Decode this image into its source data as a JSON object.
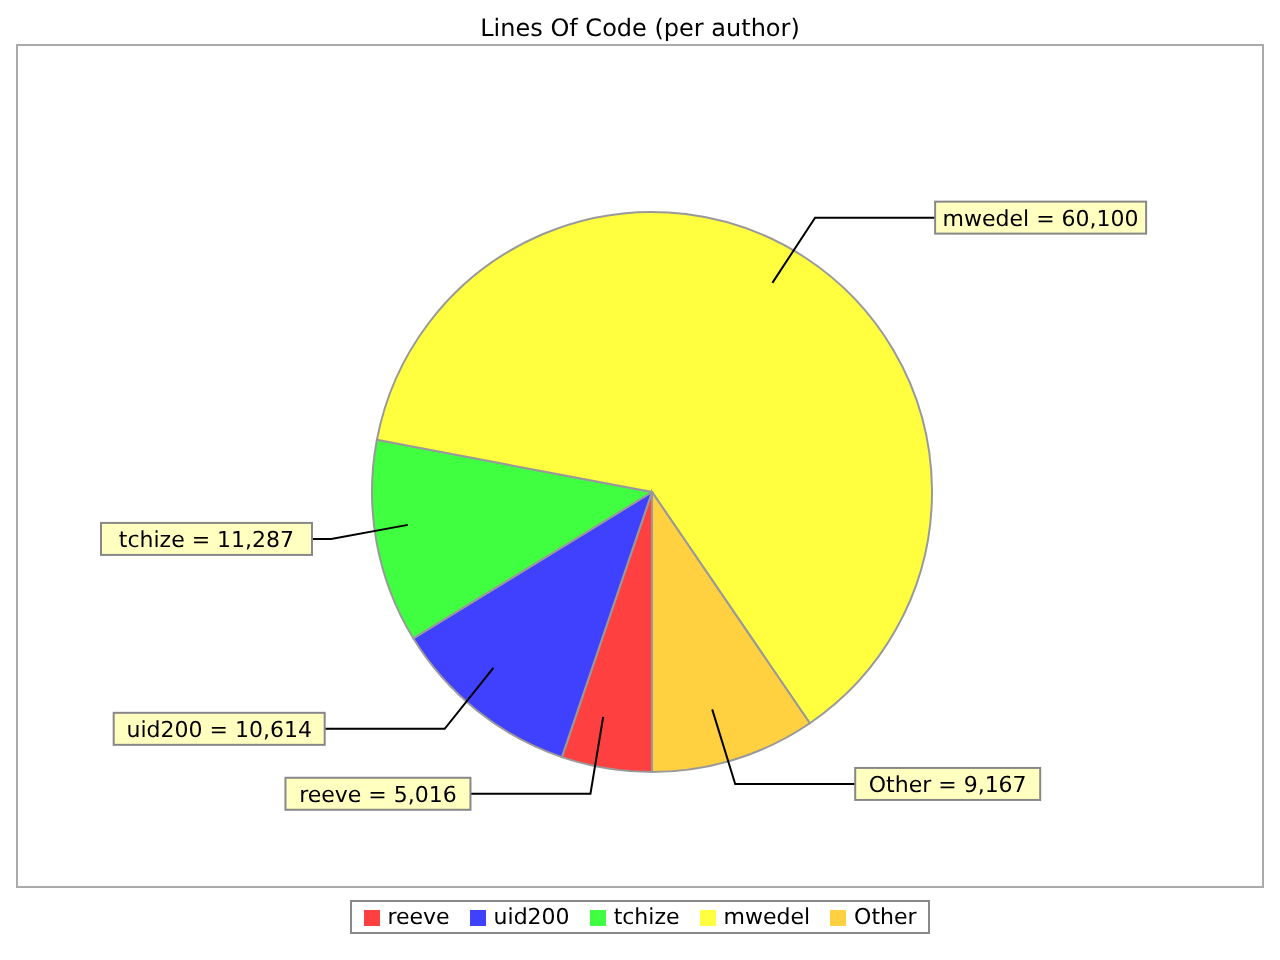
{
  "chart_data": {
    "type": "pie",
    "title": "Lines Of Code (per author)",
    "categories": [
      "reeve",
      "uid200",
      "tchize",
      "mwedel",
      "Other"
    ],
    "values": [
      5016,
      10614,
      11287,
      60100,
      9167
    ],
    "value_labels": [
      "reeve = 5,016",
      "uid200 = 10,614",
      "tchize = 11,287",
      "mwedel = 60,100",
      "Other = 9,167"
    ],
    "colors": [
      "#ff4040",
      "#4040ff",
      "#40ff40",
      "#ffff40",
      "#ffd040"
    ],
    "legend": "bottom"
  }
}
